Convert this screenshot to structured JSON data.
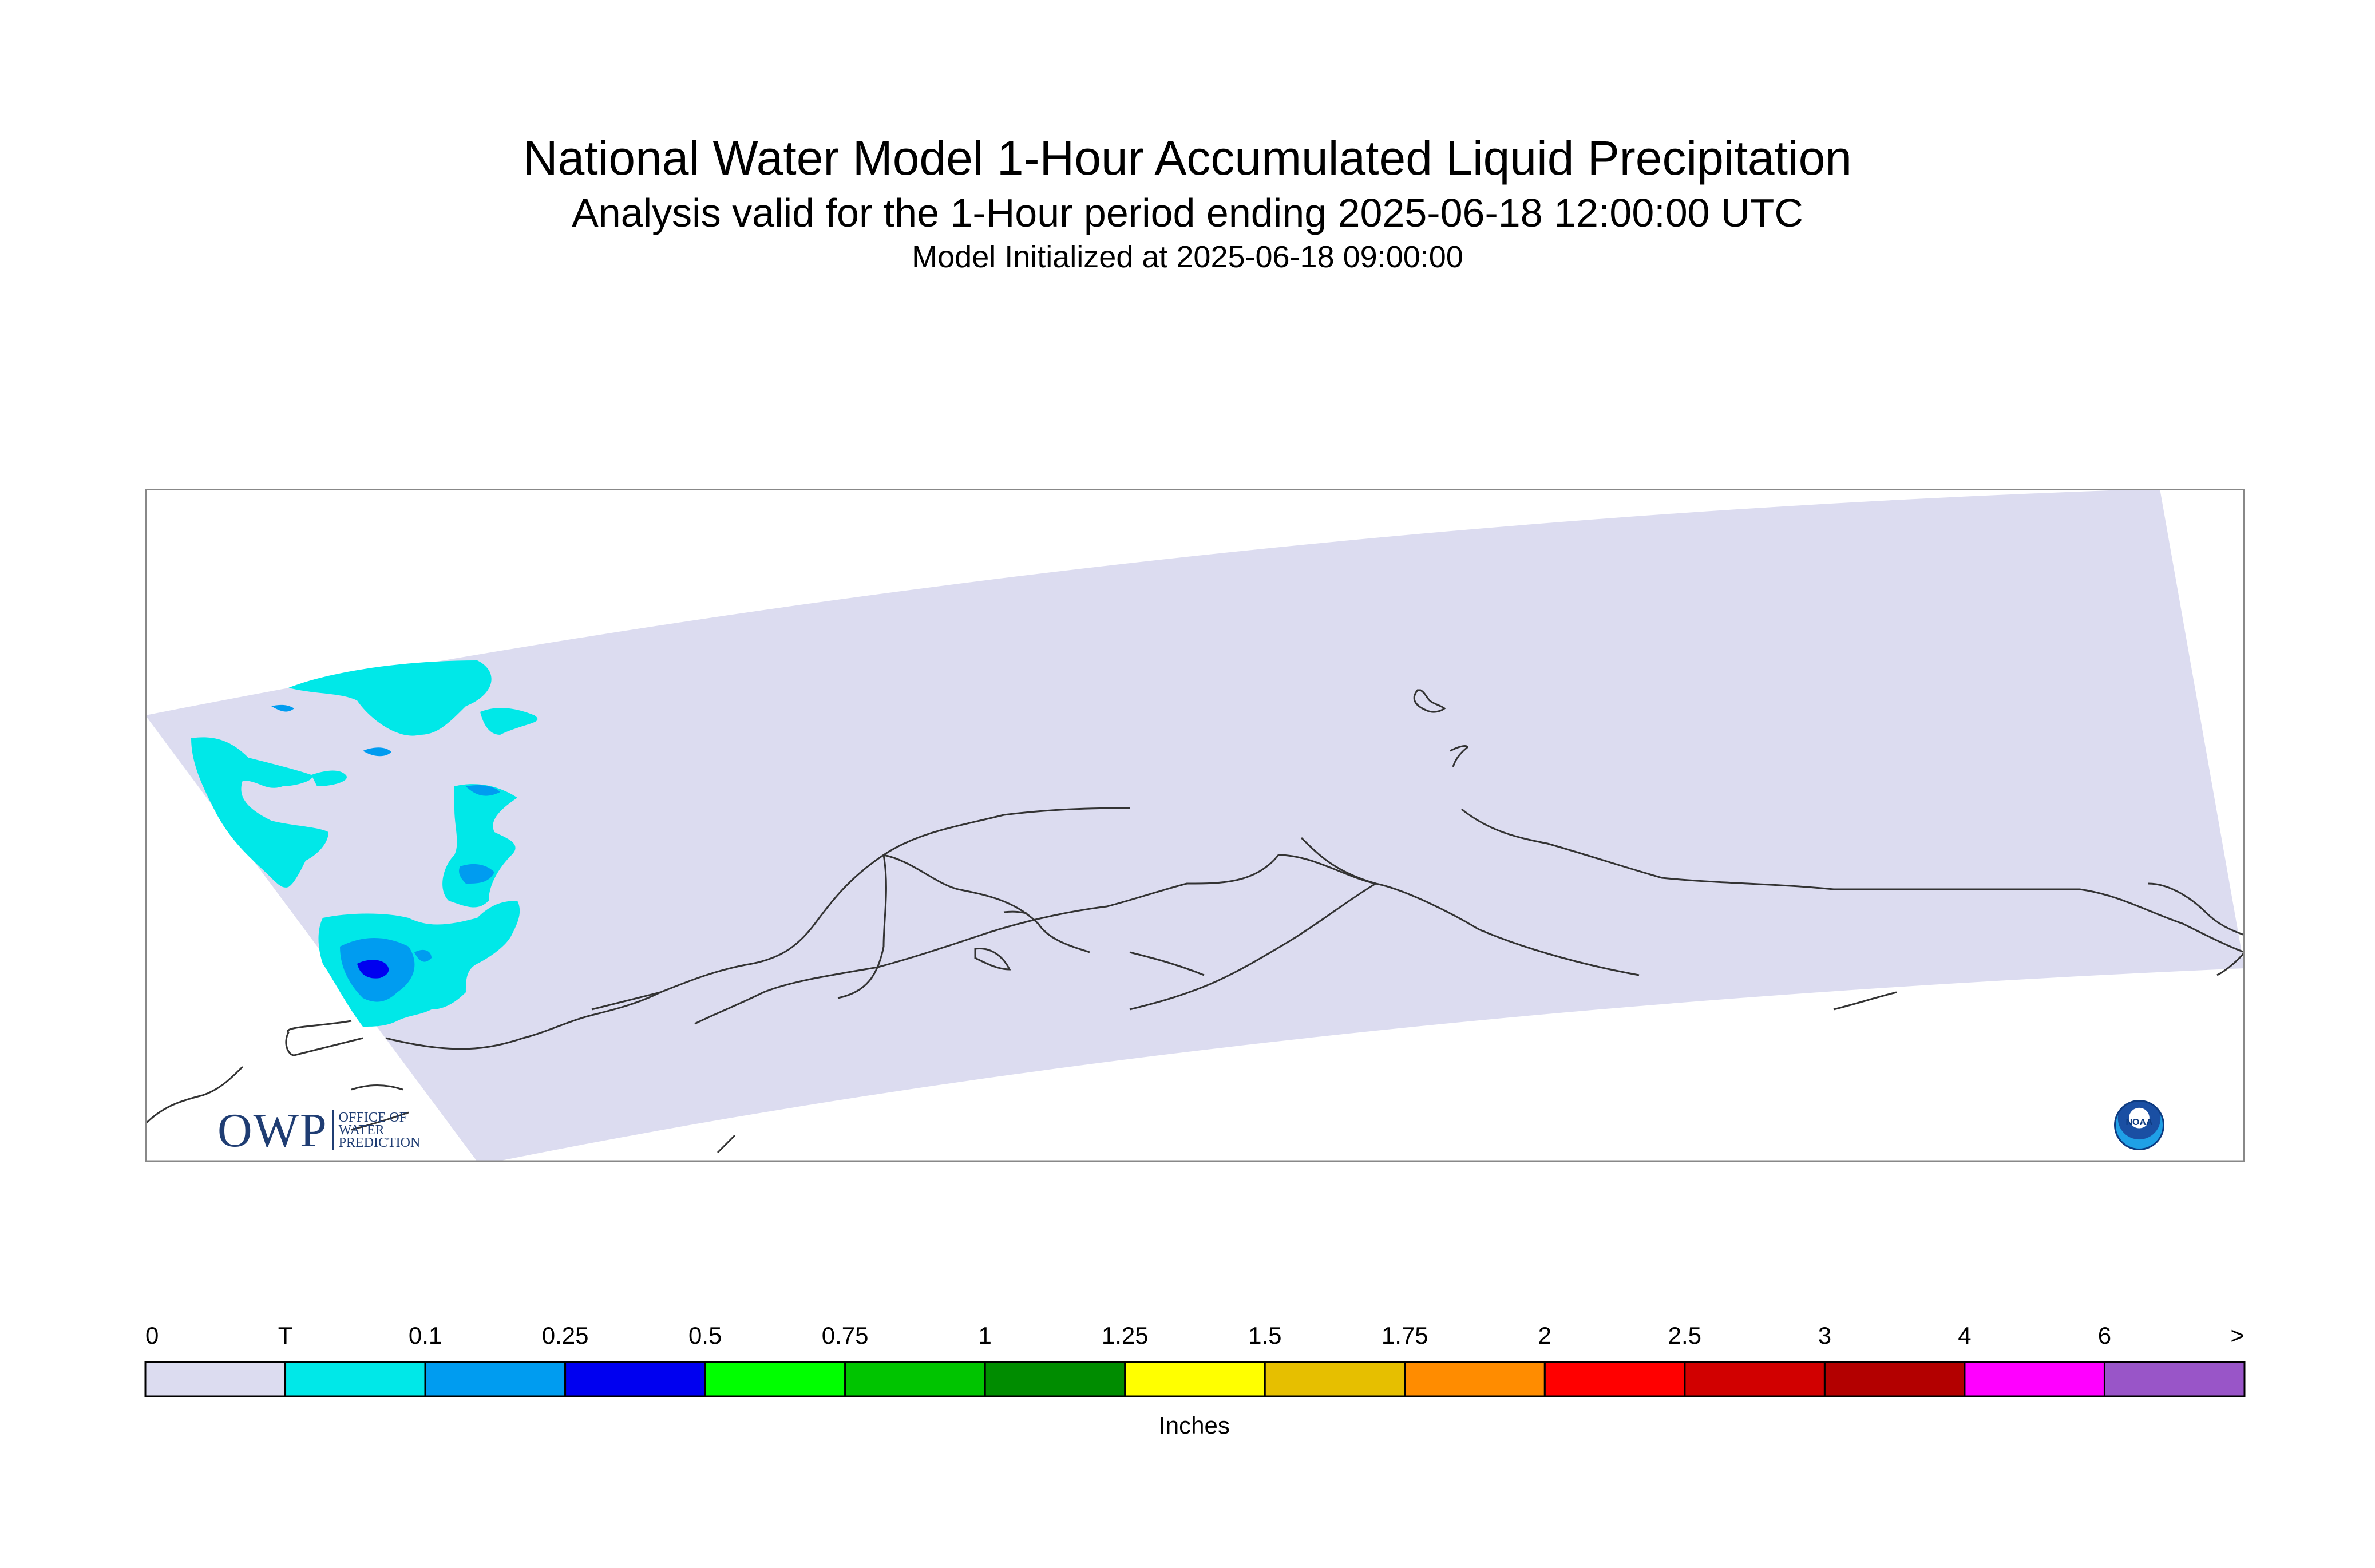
{
  "titles": {
    "main": "National Water Model 1-Hour Accumulated Liquid Precipitation",
    "sub": "Analysis valid for the 1-Hour period ending 2025-06-18 12:00:00 UTC",
    "init": "Model Initialized at 2025-06-18 09:00:00"
  },
  "logos": {
    "owp_big": "OWP",
    "owp_small": [
      "OFFICE OF",
      "WATER",
      "PREDICTION"
    ],
    "noaa": "NOAA"
  },
  "colorbar": {
    "unit_label": "Inches",
    "tick_labels": [
      "0",
      "T",
      "0.1",
      "0.25",
      "0.5",
      "0.75",
      "1",
      "1.25",
      "1.5",
      "1.75",
      "2",
      "2.5",
      "3",
      "4",
      "6",
      ">"
    ],
    "colors": [
      "#dcdcf0",
      "#00e8e8",
      "#009cf0",
      "#0000f0",
      "#00ff00",
      "#00c400",
      "#008c00",
      "#ffff00",
      "#e6bf00",
      "#ff8c00",
      "#ff0000",
      "#d10000",
      "#b30000",
      "#ff00ff",
      "#9955c8"
    ]
  },
  "map_colors": {
    "domain_fill": "#dcdcf0",
    "trace": "#00e8e8",
    "light": "#009cf0",
    "medium": "#0000f0",
    "coast": "#333333",
    "frame": "#888888"
  }
}
